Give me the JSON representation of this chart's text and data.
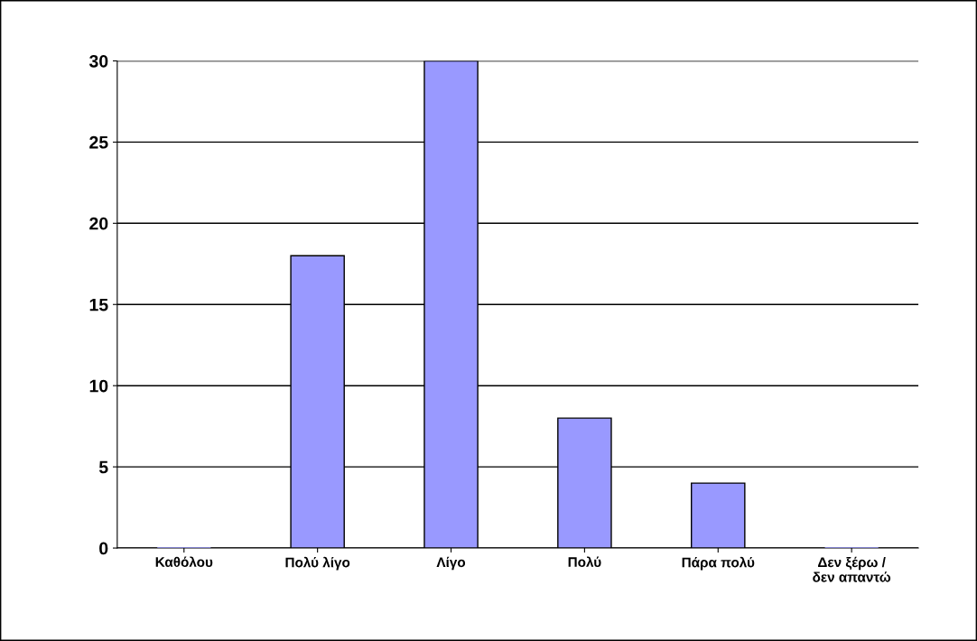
{
  "chart_data": {
    "type": "bar",
    "categories": [
      "Καθόλου",
      "Πολύ λίγο",
      "Λίγο",
      "Πολύ",
      "Πάρα πολύ",
      "Δεν ξέρω /\nδεν απαντώ"
    ],
    "values": [
      0,
      18,
      30,
      8,
      4,
      0
    ],
    "color": "#9999ff",
    "ylim": [
      0,
      30
    ],
    "yticks": [
      0,
      5,
      10,
      15,
      20,
      25,
      30
    ],
    "grid": "y",
    "legend": false
  }
}
